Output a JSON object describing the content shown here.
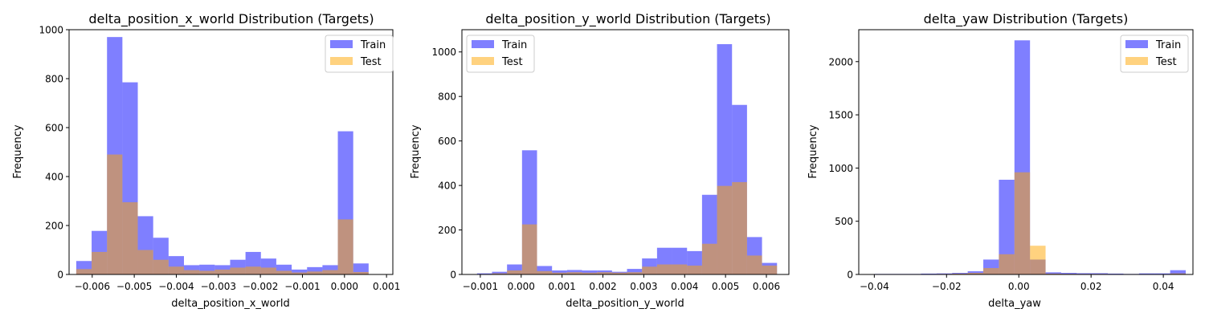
{
  "figure": {
    "background": "#ffffff"
  },
  "colors": {
    "train": "#0000ff",
    "test": "#ffa500",
    "bar_opacity": 0.5
  },
  "chart_data": [
    {
      "type": "bar",
      "title": "delta_position_x_world Distribution (Targets)",
      "xlabel": "delta_position_x_world",
      "ylabel": "Frequency",
      "xlim": [
        -0.00655,
        0.00115
      ],
      "ylim": [
        0,
        1000
      ],
      "xticks": [
        -0.006,
        -0.005,
        -0.004,
        -0.003,
        -0.002,
        -0.001,
        0.0,
        0.001
      ],
      "xtick_labels": [
        "−0.006",
        "−0.005",
        "−0.004",
        "−0.003",
        "−0.002",
        "−0.001",
        "0.000",
        "0.001"
      ],
      "yticks": [
        0,
        200,
        400,
        600,
        800,
        1000
      ],
      "ytick_labels": [
        "0",
        "200",
        "400",
        "600",
        "800",
        "1000"
      ],
      "legend": {
        "position": "top-right",
        "entries": [
          "Train",
          "Test"
        ]
      },
      "grid": false,
      "series": [
        {
          "name": "Train",
          "bin_start": -0.00638,
          "bin_width": 0.000366,
          "values": [
            55,
            178,
            970,
            785,
            238,
            150,
            75,
            38,
            40,
            38,
            60,
            92,
            65,
            40,
            20,
            30,
            38,
            585,
            45
          ]
        },
        {
          "name": "Test",
          "bin_start": -0.00638,
          "bin_width": 0.000366,
          "values": [
            22,
            92,
            490,
            295,
            100,
            60,
            32,
            18,
            15,
            20,
            28,
            32,
            28,
            15,
            8,
            12,
            18,
            225,
            10
          ]
        }
      ]
    },
    {
      "type": "bar",
      "title": "delta_position_y_world Distribution (Targets)",
      "xlabel": "delta_position_y_world",
      "ylabel": "Frequency",
      "xlim": [
        -0.00145,
        0.00655
      ],
      "ylim": [
        0,
        1100
      ],
      "xticks": [
        -0.001,
        0.0,
        0.001,
        0.002,
        0.003,
        0.004,
        0.005,
        0.006
      ],
      "xtick_labels": [
        "−0.001",
        "0.000",
        "0.001",
        "0.002",
        "0.003",
        "0.004",
        "0.005",
        "0.006"
      ],
      "yticks": [
        0,
        200,
        400,
        600,
        800,
        1000
      ],
      "ytick_labels": [
        "0",
        "200",
        "400",
        "600",
        "800",
        "1000"
      ],
      "legend": {
        "position": "top-left",
        "entries": [
          "Train",
          "Test"
        ]
      },
      "grid": false,
      "series": [
        {
          "name": "Train",
          "bin_start": -0.00108,
          "bin_width": 0.000367,
          "values": [
            5,
            12,
            45,
            558,
            38,
            18,
            20,
            18,
            18,
            12,
            25,
            72,
            120,
            120,
            105,
            358,
            1035,
            762,
            168,
            52
          ]
        },
        {
          "name": "Test",
          "bin_start": -0.00108,
          "bin_width": 0.000367,
          "values": [
            2,
            5,
            18,
            225,
            15,
            8,
            10,
            8,
            10,
            8,
            10,
            35,
            45,
            45,
            40,
            138,
            398,
            415,
            85,
            40
          ]
        }
      ]
    },
    {
      "type": "bar",
      "title": "delta_yaw Distribution (Targets)",
      "xlabel": "delta_yaw",
      "ylabel": "Frequency",
      "xlim": [
        -0.0443,
        0.0482
      ],
      "ylim": [
        0,
        2300
      ],
      "xticks": [
        -0.04,
        -0.02,
        0.0,
        0.02,
        0.04
      ],
      "xtick_labels": [
        "−0.04",
        "−0.02",
        "0.00",
        "0.02",
        "0.04"
      ],
      "yticks": [
        0,
        500,
        1000,
        1500,
        2000
      ],
      "ytick_labels": [
        "0",
        "500",
        "1000",
        "1500",
        "2000"
      ],
      "legend": {
        "position": "top-right",
        "entries": [
          "Train",
          "Test"
        ]
      },
      "grid": false,
      "series": [
        {
          "name": "Train",
          "bin_start": -0.04,
          "bin_width": 0.00431,
          "values": [
            5,
            5,
            5,
            8,
            10,
            15,
            30,
            140,
            890,
            2200,
            140,
            20,
            15,
            12,
            12,
            8,
            5,
            10,
            10,
            40
          ]
        },
        {
          "name": "Test",
          "bin_start": -0.04,
          "bin_width": 0.00431,
          "values": [
            2,
            2,
            2,
            3,
            5,
            8,
            15,
            60,
            190,
            960,
            270,
            8,
            6,
            5,
            5,
            3,
            2,
            3,
            3,
            10
          ]
        }
      ]
    }
  ]
}
